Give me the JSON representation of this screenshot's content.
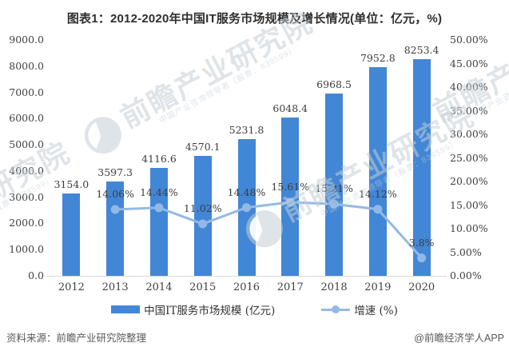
{
  "title": "图表1：2012-2020年中国IT服务市场规模及增长情况(单位：亿元，%)",
  "chart_data": {
    "type": "bar+line",
    "categories": [
      "2012",
      "2013",
      "2014",
      "2015",
      "2016",
      "2017",
      "2018",
      "2019",
      "2020"
    ],
    "series": [
      {
        "name": "中国IT服务市场规模 (亿元)",
        "type": "bar",
        "axis": "left",
        "color": "#4286d6",
        "values": [
          3154.0,
          3597.3,
          4116.6,
          4570.1,
          5231.8,
          6048.4,
          6968.5,
          7952.8,
          8253.4
        ],
        "labels": [
          "3154.0",
          "3597.3",
          "4116.6",
          "4570.1",
          "5231.8",
          "6048.4",
          "6968.5",
          "7952.8",
          "8253.4"
        ]
      },
      {
        "name": "增速 (%)",
        "type": "line",
        "axis": "right",
        "color": "#92b9e6",
        "values": [
          null,
          14.06,
          14.44,
          11.02,
          14.48,
          15.61,
          15.21,
          14.12,
          3.8
        ],
        "labels": [
          null,
          "14.06%",
          "14.44%",
          "11.02%",
          "14.48%",
          "15.61%",
          "15.21%",
          "14.12%",
          "3.8%"
        ]
      }
    ],
    "left_axis": {
      "min": 0,
      "max": 9000,
      "step": 1000,
      "tick_labels": [
        "9000.0",
        "8000.0",
        "7000.0",
        "6000.0",
        "5000.0",
        "4000.0",
        "3000.0",
        "2000.0",
        "1000.0",
        "0.0"
      ]
    },
    "right_axis": {
      "min": 0,
      "max": 50,
      "step": 5,
      "tick_labels": [
        "50.00%",
        "45.00%",
        "40.00%",
        "35.00%",
        "30.00%",
        "25.00%",
        "20.00%",
        "15.00%",
        "10.00%",
        "5.00%",
        "0.00%"
      ]
    },
    "grid": false,
    "legend_position": "bottom"
  },
  "legend": {
    "items": [
      {
        "label": "中国IT服务市场规模 (亿元)",
        "swatch": "bar"
      },
      {
        "label": "增速 (%)",
        "swatch": "line"
      }
    ]
  },
  "watermark": {
    "large_text": "前瞻产业研究院",
    "small_text": "中国产业咨询领导者（股票：839599）"
  },
  "footer": {
    "source": "资料来源：前瞻产业研究院整理",
    "brand": "@前瞻经济学人APP"
  },
  "colors": {
    "bar": "#4286d6",
    "line": "#92b9e6",
    "axis_text": "#404040",
    "title": "#2f2f2f",
    "footer_text": "#595959",
    "axis_line": "#d9d9d9"
  }
}
